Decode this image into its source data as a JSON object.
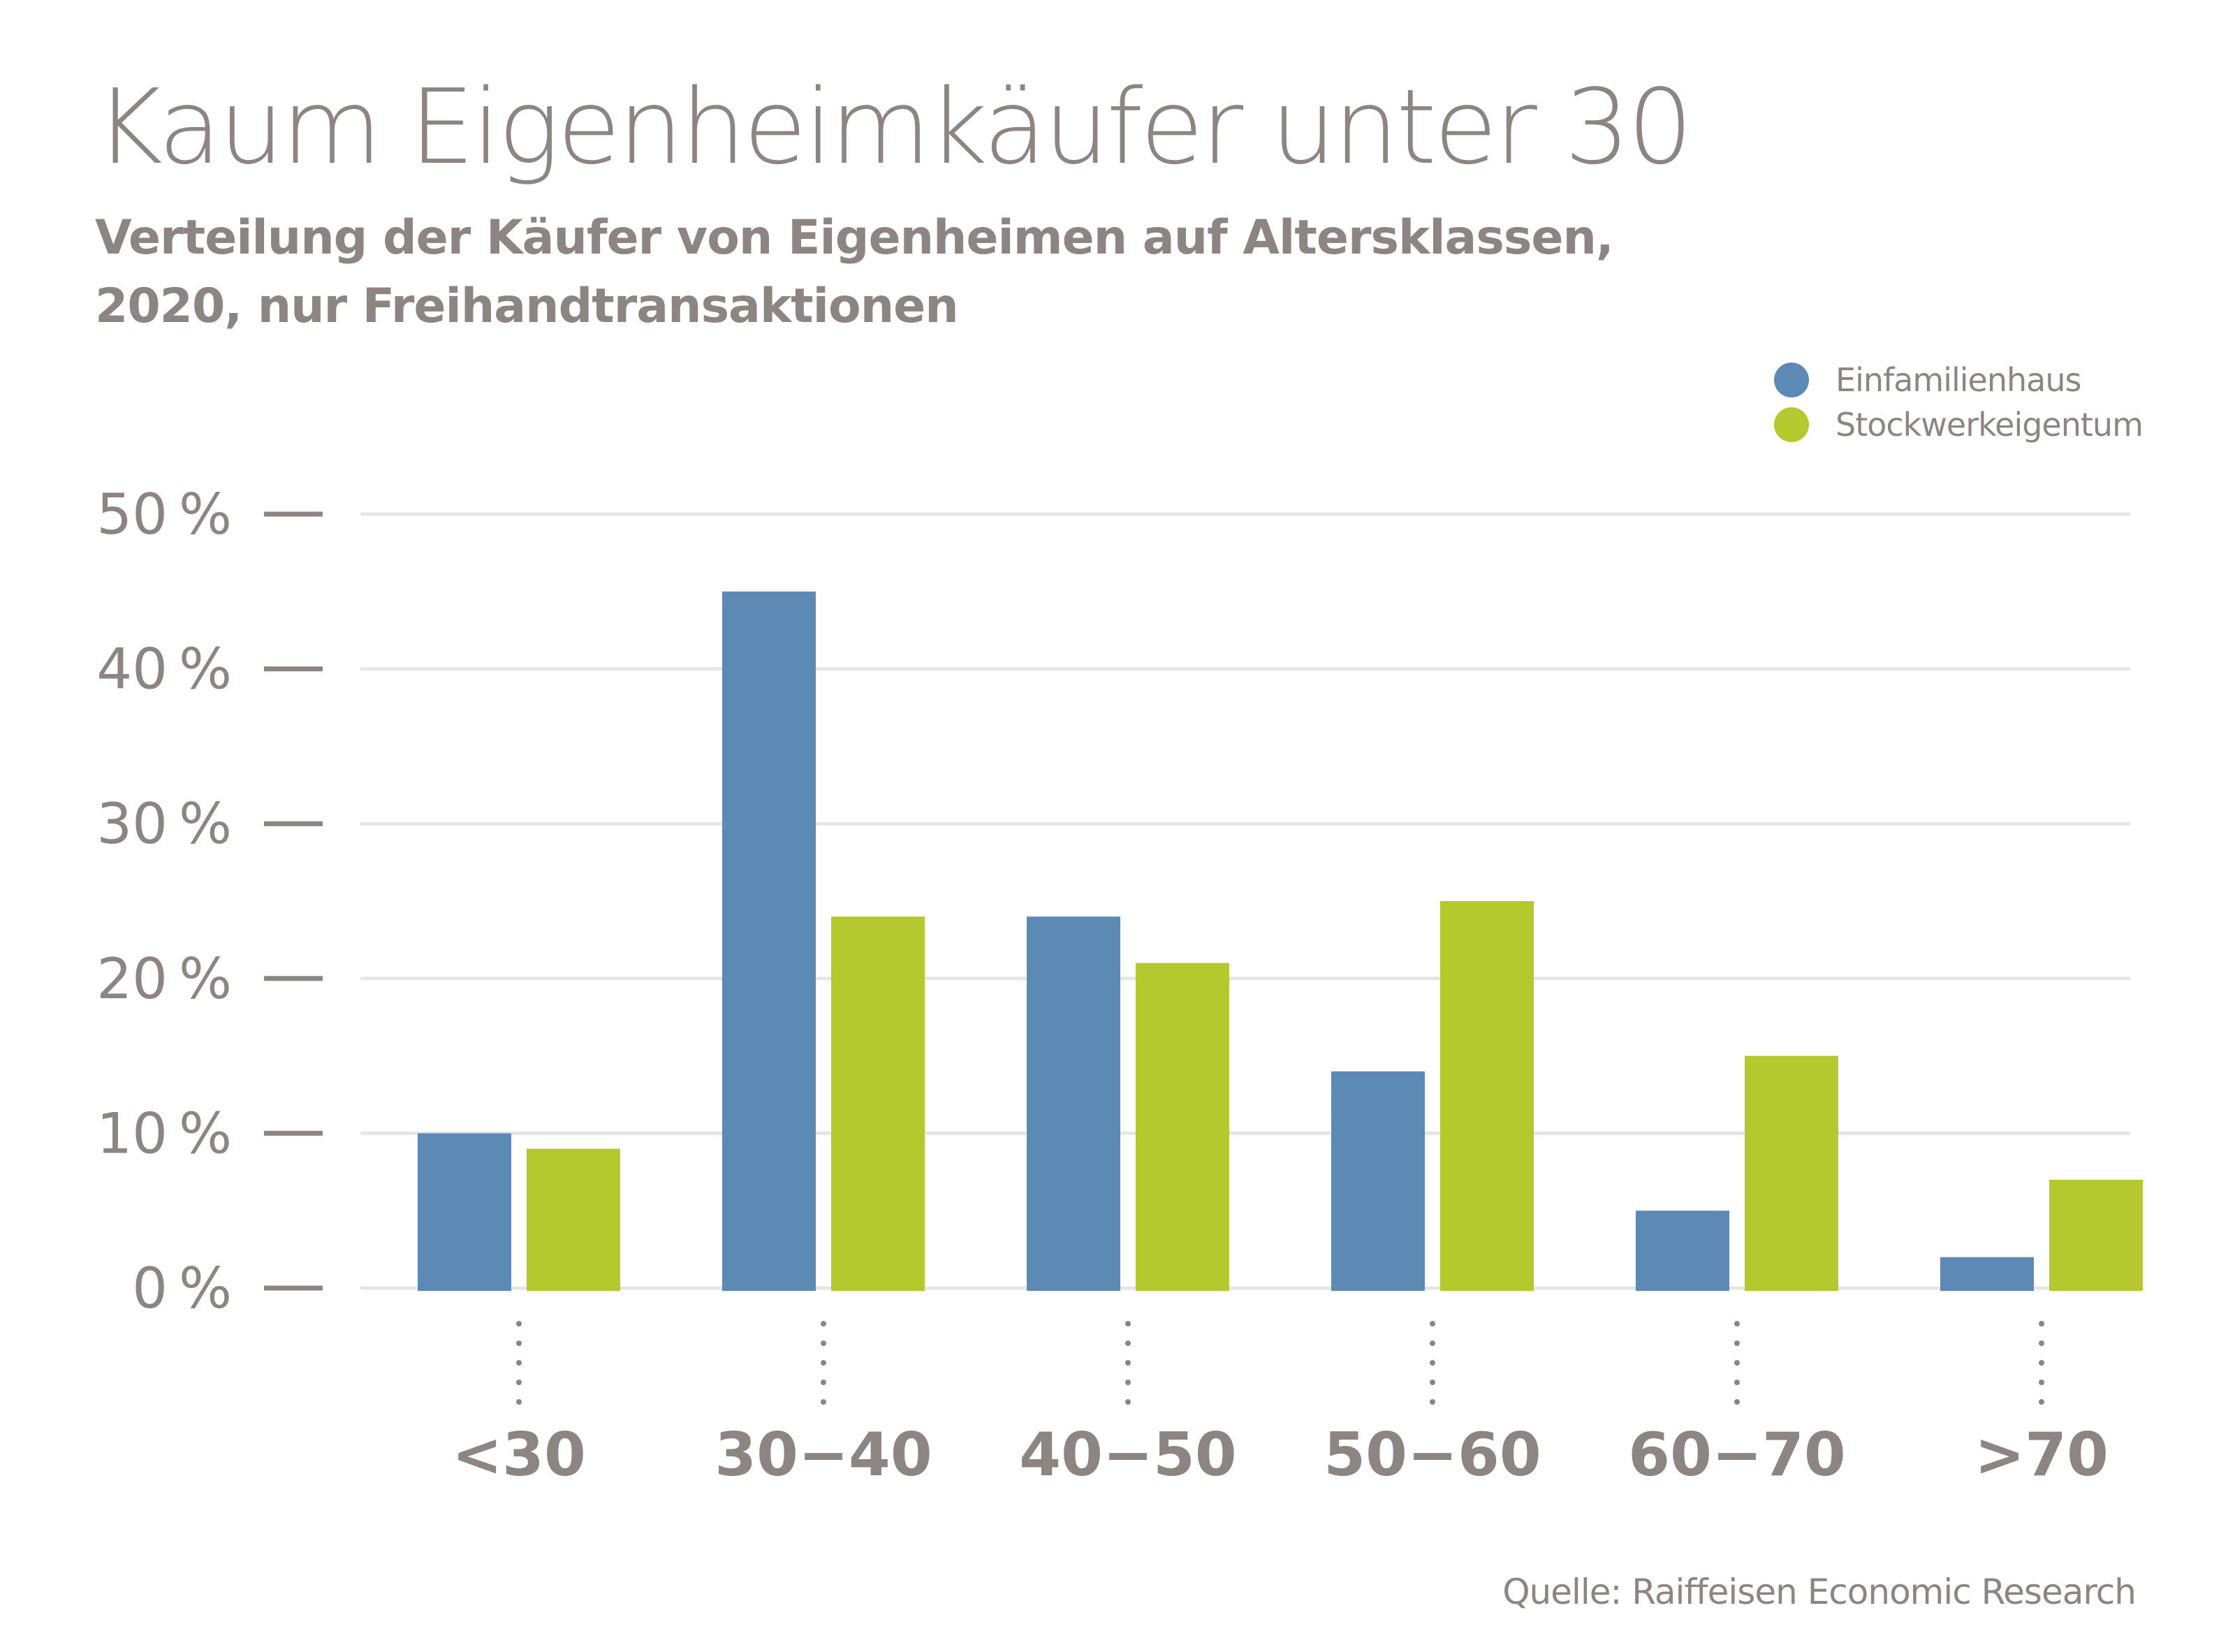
{
  "header": {
    "title": "Kaum Eigenheimkäufer unter 30",
    "subtitle_line1": "Verteilung der Käufer von Eigenheimen auf Altersklassen,",
    "subtitle_line2": "2020, nur Freihandtransaktionen"
  },
  "legend": [
    {
      "label": "Einfamilienhaus",
      "color": "#5d89b5"
    },
    {
      "label": "Stockwerkeigentum",
      "color": "#b4c92e"
    }
  ],
  "footer": {
    "source": "Quelle: Raiffeisen Economic Research"
  },
  "chart_data": {
    "type": "bar",
    "title": "Kaum Eigenheimkäufer unter 30",
    "subtitle": "Verteilung der Käufer von Eigenheimen auf Altersklassen, 2020, nur Freihandtransaktionen",
    "xlabel": "",
    "ylabel": "",
    "categories": [
      "<30",
      "30−40",
      "40−50",
      "50−60",
      "60−70",
      ">70"
    ],
    "series": [
      {
        "name": "Einfamilienhaus",
        "color": "#5d89b5",
        "values": [
          10,
          45,
          24,
          14,
          5,
          2
        ]
      },
      {
        "name": "Stockwerkeigentum",
        "color": "#b4c92e",
        "values": [
          9,
          24,
          21,
          25,
          15,
          7
        ]
      }
    ],
    "ylim": [
      0,
      50
    ],
    "yticks": [
      0,
      10,
      20,
      30,
      40,
      50
    ],
    "ytick_labels": [
      "0 %",
      "10 %",
      "20 %",
      "30 %",
      "40 %",
      "50 %"
    ],
    "unit": "%",
    "grid": true,
    "legend_position": "top-right",
    "source": "Quelle: Raiffeisen Economic Research"
  }
}
